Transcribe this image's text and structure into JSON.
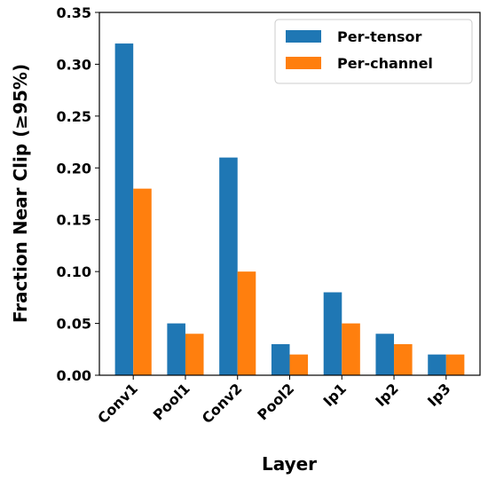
{
  "chart_data": {
    "type": "bar",
    "title": "",
    "xlabel": "Layer",
    "ylabel": "Fraction Near Clip (≥95%)",
    "categories": [
      "Conv1",
      "Pool1",
      "Conv2",
      "Pool2",
      "Ip1",
      "Ip2",
      "Ip3"
    ],
    "series": [
      {
        "name": "Per-tensor",
        "values": [
          0.32,
          0.05,
          0.21,
          0.03,
          0.08,
          0.04,
          0.02
        ],
        "color": "#1f77b4"
      },
      {
        "name": "Per-channel",
        "values": [
          0.18,
          0.04,
          0.1,
          0.02,
          0.05,
          0.03,
          0.02
        ],
        "color": "#ff7f0e"
      }
    ],
    "ylim": [
      0,
      0.35
    ],
    "yticks": [
      "0.00",
      "0.05",
      "0.10",
      "0.15",
      "0.20",
      "0.25",
      "0.30",
      "0.35"
    ],
    "grid": false,
    "legend_position": "top-right"
  }
}
